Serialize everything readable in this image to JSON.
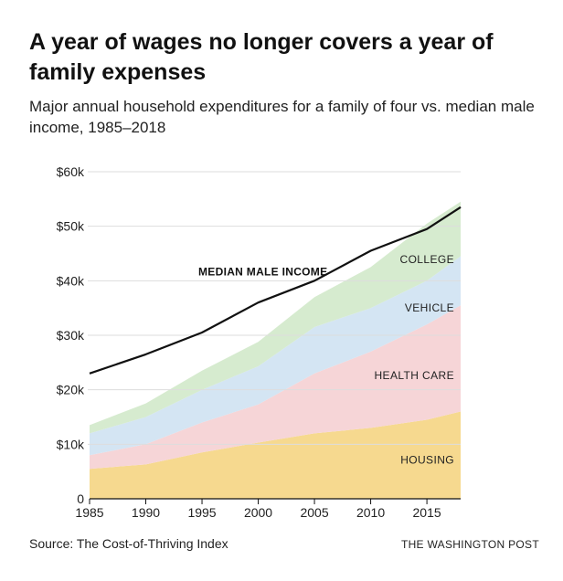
{
  "title": "A year of wages no longer covers a year of family expenses",
  "subtitle": "Major annual household expenditures for a family of four vs. median male income, 1985–2018",
  "source": "Source: The Cost-of-Thriving Index",
  "credit": "THE WASHINGTON POST",
  "colors": {
    "housing": "#f6d98f",
    "health_care": "#f6d5d7",
    "vehicle": "#d4e5f3",
    "college": "#d6ebcf",
    "income_line": "#111111",
    "grid": "#dddddd"
  },
  "chart_data": {
    "type": "area",
    "title": "A year of wages no longer covers a year of family expenses",
    "subtitle": "Major annual household expenditures for a family of four vs. median male income, 1985–2018",
    "x": [
      1985,
      1990,
      1995,
      2000,
      2005,
      2010,
      2015,
      2018
    ],
    "x_ticks": [
      1985,
      1990,
      1995,
      2000,
      2005,
      2010,
      2015
    ],
    "y_ticks": [
      0,
      10000,
      20000,
      30000,
      40000,
      50000,
      60000
    ],
    "y_tick_labels": [
      "0",
      "$10k",
      "$20k",
      "$30k",
      "$40k",
      "$50k",
      "$60k"
    ],
    "xlim": [
      1985,
      2018
    ],
    "ylim": [
      0,
      60000
    ],
    "grid": true,
    "stacked": true,
    "series": [
      {
        "name": "HOUSING",
        "color": "#f6d98f",
        "values": [
          5500,
          6300,
          8500,
          10300,
          12000,
          13000,
          14500,
          16000
        ]
      },
      {
        "name": "HEALTH CARE",
        "color": "#f6d5d7",
        "values": [
          2500,
          3700,
          5500,
          7000,
          11000,
          14000,
          17500,
          19500
        ]
      },
      {
        "name": "VEHICLE",
        "color": "#d4e5f3",
        "values": [
          4000,
          5000,
          6000,
          7000,
          8500,
          8000,
          8000,
          9000
        ]
      },
      {
        "name": "COLLEGE",
        "color": "#d6ebcf",
        "values": [
          1500,
          2500,
          3500,
          4500,
          5500,
          7500,
          10500,
          10000
        ]
      }
    ],
    "line": {
      "name": "MEDIAN MALE INCOME",
      "color": "#111111",
      "values": [
        23000,
        26500,
        30500,
        36000,
        40000,
        45500,
        49500,
        53500
      ]
    }
  }
}
